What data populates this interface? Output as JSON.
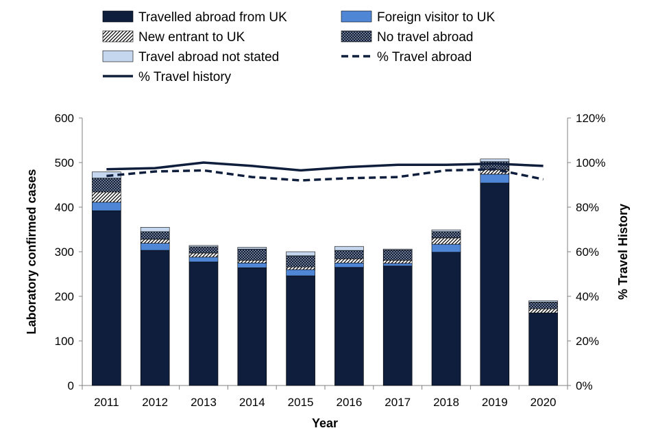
{
  "chart_data": {
    "type": "bar",
    "categories": [
      "2011",
      "2012",
      "2013",
      "2014",
      "2015",
      "2016",
      "2017",
      "2018",
      "2019",
      "2020"
    ],
    "series": [
      {
        "name": "Travelled abroad from UK",
        "kind": "bar",
        "pattern": "solid-navy",
        "values": [
          392,
          303,
          277,
          264,
          246,
          265,
          268,
          299,
          454,
          163
        ]
      },
      {
        "name": "Foreign visitor to UK",
        "kind": "bar",
        "pattern": "solid-blue",
        "values": [
          19,
          16,
          11,
          11,
          14,
          10,
          6,
          18,
          20,
          0
        ]
      },
      {
        "name": "New entrant to UK",
        "kind": "bar",
        "pattern": "diagonal-hatch",
        "values": [
          23,
          9,
          9,
          6,
          6,
          9,
          7,
          14,
          10,
          9
        ]
      },
      {
        "name": "No travel abroad",
        "kind": "bar",
        "pattern": "dots",
        "values": [
          31,
          17,
          14,
          25,
          25,
          19,
          23,
          14,
          18,
          15
        ]
      },
      {
        "name": "Travel abroad not stated",
        "kind": "bar",
        "pattern": "solid-lightblue",
        "values": [
          14,
          10,
          3,
          4,
          9,
          9,
          2,
          4,
          6,
          3
        ]
      },
      {
        "name": "% Travel abroad",
        "kind": "line",
        "style": "dashed",
        "axis": "right",
        "values": [
          0.94,
          0.96,
          0.965,
          0.935,
          0.92,
          0.93,
          0.935,
          0.965,
          0.97,
          0.925
        ]
      },
      {
        "name": "% Travel history",
        "kind": "line",
        "style": "solid",
        "axis": "right",
        "values": [
          0.97,
          0.975,
          1.0,
          0.985,
          0.965,
          0.98,
          0.99,
          0.99,
          0.995,
          0.985
        ]
      }
    ],
    "stacked": true,
    "xlabel": "Year",
    "ylabel": "Laboratory confirmed cases",
    "y2label": "% Travel History",
    "ylim": [
      0,
      600
    ],
    "yticks": [
      0,
      100,
      200,
      300,
      400,
      500,
      600
    ],
    "y2lim": [
      0,
      1.2
    ],
    "y2ticks": [
      "0%",
      "20%",
      "40%",
      "60%",
      "80%",
      "100%",
      "120%"
    ],
    "grid": false,
    "legend_position": "top",
    "colors": {
      "navy": "#0f1e3c",
      "blue": "#4f86d6",
      "lightblue": "#c5d7ee",
      "line": "#0f1e3c"
    }
  }
}
